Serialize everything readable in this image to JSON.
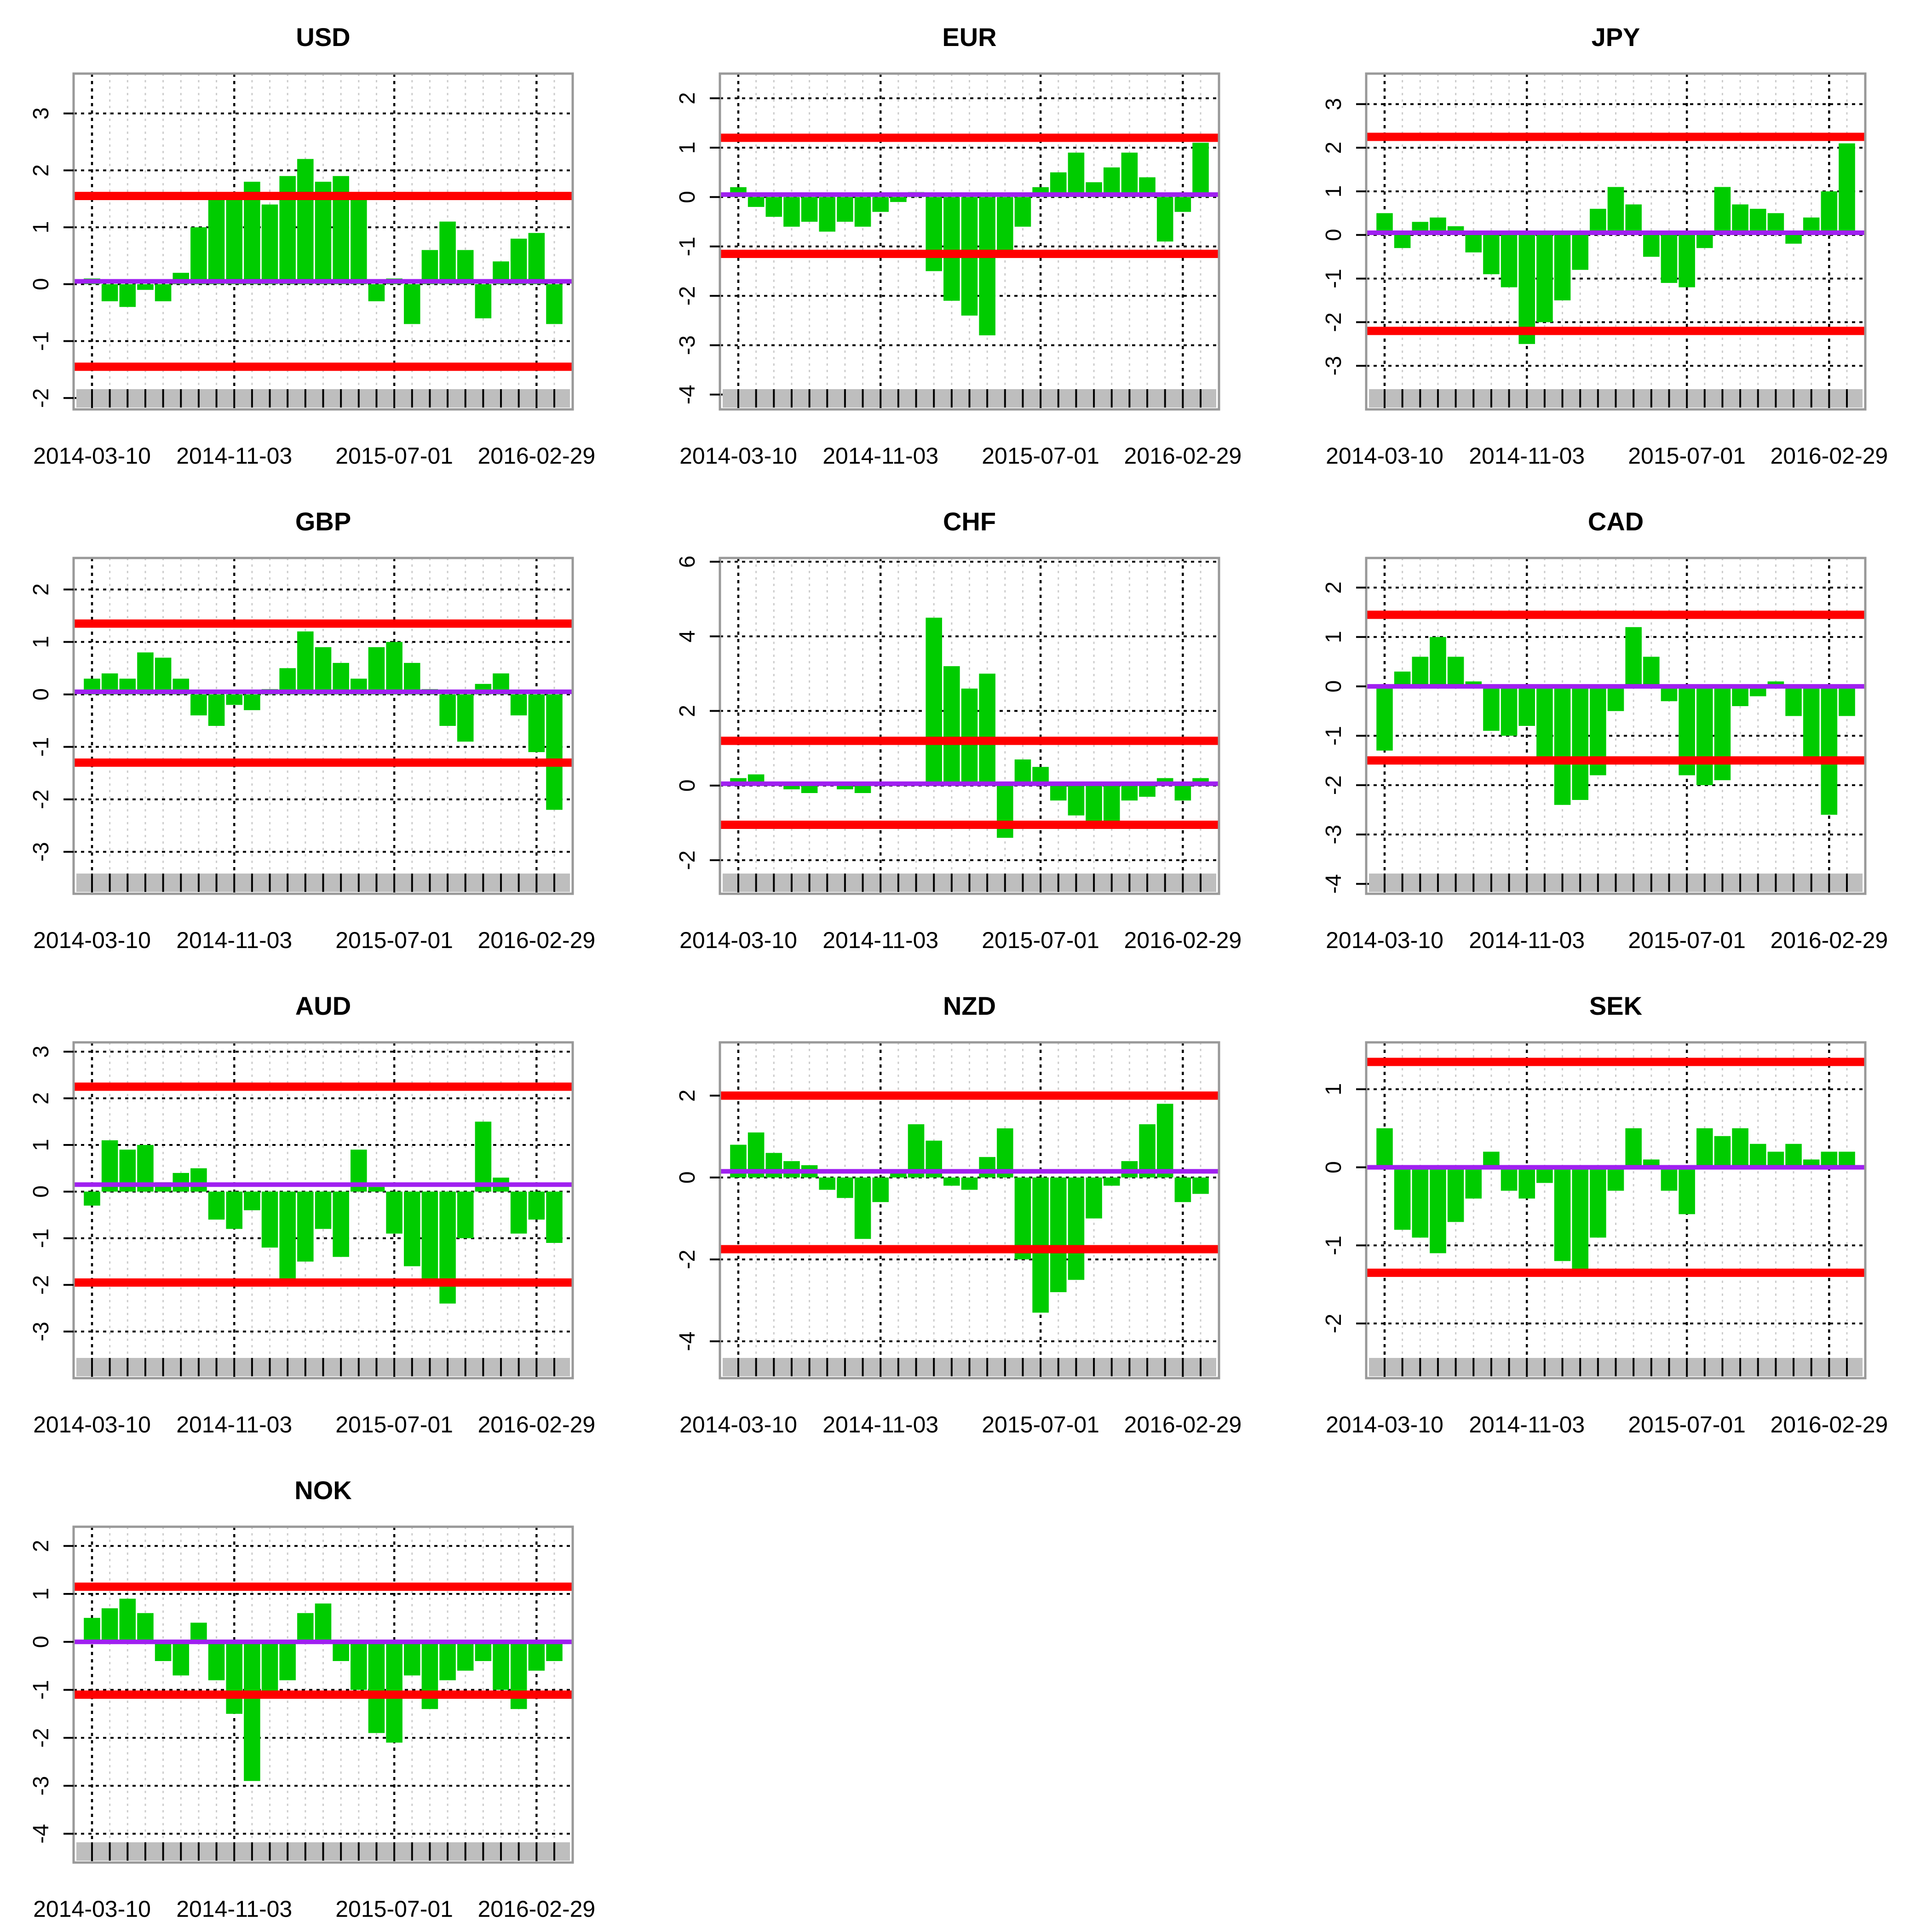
{
  "figure_title": "",
  "colors": {
    "bars": "#00cc00",
    "bands": "#ff0000",
    "mean": "#a020f0",
    "tick_strip": "#bebebe",
    "frame": "#999999",
    "major_grid": "#000000",
    "minor_grid": "#cccccc"
  },
  "chart_data": [
    {
      "type": "bar",
      "title": "USD",
      "x": [
        "2014-03-10",
        "2014-04-07",
        "2014-05-05",
        "2014-06-02",
        "2014-06-30",
        "2014-07-28",
        "2014-08-25",
        "2014-09-22",
        "2014-10-20",
        "2014-11-17",
        "2014-12-15",
        "2015-01-12",
        "2015-02-09",
        "2015-03-09",
        "2015-04-06",
        "2015-05-04",
        "2015-06-01",
        "2015-06-29",
        "2015-07-27",
        "2015-08-24",
        "2015-09-21",
        "2015-10-19",
        "2015-11-16",
        "2015-12-14",
        "2016-01-11",
        "2016-02-08",
        "2016-03-07"
      ],
      "values": [
        0.1,
        -0.3,
        -0.4,
        -0.1,
        -0.3,
        0.2,
        1.0,
        1.5,
        1.6,
        1.8,
        1.4,
        1.9,
        2.2,
        1.8,
        1.9,
        1.5,
        -0.3,
        0.1,
        -0.7,
        0.6,
        1.1,
        0.6,
        -0.6,
        0.4,
        0.8,
        0.9,
        -0.7
      ],
      "mean": 0.05,
      "upper": 1.55,
      "lower": -1.45,
      "xtick_labels": [
        "2014-03-10",
        "2014-11-03",
        "2015-07-01",
        "2016-02-29"
      ],
      "yticks": [
        -2,
        -1,
        0,
        1,
        2,
        3
      ],
      "ylim": [
        -2.2,
        3.7
      ]
    },
    {
      "type": "bar",
      "title": "EUR",
      "x": [
        "2014-03-10",
        "2014-04-07",
        "2014-05-05",
        "2014-06-02",
        "2014-06-30",
        "2014-07-28",
        "2014-08-25",
        "2014-09-22",
        "2014-10-20",
        "2014-11-17",
        "2014-12-15",
        "2015-01-12",
        "2015-02-09",
        "2015-03-09",
        "2015-04-06",
        "2015-05-04",
        "2015-06-01",
        "2015-06-29",
        "2015-07-27",
        "2015-08-24",
        "2015-09-21",
        "2015-10-19",
        "2015-11-16",
        "2015-12-14",
        "2016-01-11",
        "2016-02-08",
        "2016-03-07"
      ],
      "values": [
        0.2,
        -0.2,
        -0.4,
        -0.6,
        -0.5,
        -0.7,
        -0.5,
        -0.6,
        -0.3,
        -0.1,
        0.1,
        -1.5,
        -2.1,
        -2.4,
        -2.8,
        -1.2,
        -0.6,
        0.2,
        0.5,
        0.9,
        0.3,
        0.6,
        0.9,
        0.4,
        -0.9,
        -0.3,
        1.1
      ],
      "mean": 0.05,
      "upper": 1.2,
      "lower": -1.15,
      "xtick_labels": [
        "2014-03-10",
        "2014-11-03",
        "2015-07-01",
        "2016-02-29"
      ],
      "yticks": [
        -4,
        -3,
        -2,
        -1,
        0,
        1,
        2
      ],
      "ylim": [
        -4.3,
        2.5
      ]
    },
    {
      "type": "bar",
      "title": "JPY",
      "x": [
        "2014-03-10",
        "2014-04-07",
        "2014-05-05",
        "2014-06-02",
        "2014-06-30",
        "2014-07-28",
        "2014-08-25",
        "2014-09-22",
        "2014-10-20",
        "2014-11-17",
        "2014-12-15",
        "2015-01-12",
        "2015-02-09",
        "2015-03-09",
        "2015-04-06",
        "2015-05-04",
        "2015-06-01",
        "2015-06-29",
        "2015-07-27",
        "2015-08-24",
        "2015-09-21",
        "2015-10-19",
        "2015-11-16",
        "2015-12-14",
        "2016-01-11",
        "2016-02-08",
        "2016-03-07"
      ],
      "values": [
        0.5,
        -0.3,
        0.3,
        0.4,
        0.2,
        -0.4,
        -0.9,
        -1.2,
        -2.5,
        -2.0,
        -1.5,
        -0.8,
        0.6,
        1.1,
        0.7,
        -0.5,
        -1.1,
        -1.2,
        -0.3,
        1.1,
        0.7,
        0.6,
        0.5,
        -0.2,
        0.4,
        1.0,
        2.1
      ],
      "mean": 0.05,
      "upper": 2.25,
      "lower": -2.2,
      "xtick_labels": [
        "2014-03-10",
        "2014-11-03",
        "2015-07-01",
        "2016-02-29"
      ],
      "yticks": [
        -3,
        -2,
        -1,
        0,
        1,
        2,
        3
      ],
      "ylim": [
        -4.0,
        3.7
      ]
    },
    {
      "type": "bar",
      "title": "GBP",
      "x": [
        "2014-03-10",
        "2014-04-07",
        "2014-05-05",
        "2014-06-02",
        "2014-06-30",
        "2014-07-28",
        "2014-08-25",
        "2014-09-22",
        "2014-10-20",
        "2014-11-17",
        "2014-12-15",
        "2015-01-12",
        "2015-02-09",
        "2015-03-09",
        "2015-04-06",
        "2015-05-04",
        "2015-06-01",
        "2015-06-29",
        "2015-07-27",
        "2015-08-24",
        "2015-09-21",
        "2015-10-19",
        "2015-11-16",
        "2015-12-14",
        "2016-01-11",
        "2016-02-08",
        "2016-03-07"
      ],
      "values": [
        0.3,
        0.4,
        0.3,
        0.8,
        0.7,
        0.3,
        -0.4,
        -0.6,
        -0.2,
        -0.3,
        0.1,
        0.5,
        1.2,
        0.9,
        0.6,
        0.3,
        0.9,
        1.0,
        0.6,
        0.1,
        -0.6,
        -0.9,
        0.2,
        0.4,
        -0.4,
        -1.1,
        -2.2
      ],
      "mean": 0.05,
      "upper": 1.35,
      "lower": -1.3,
      "xtick_labels": [
        "2014-03-10",
        "2014-11-03",
        "2015-07-01",
        "2016-02-29"
      ],
      "yticks": [
        -3,
        -2,
        -1,
        0,
        1,
        2
      ],
      "ylim": [
        -3.8,
        2.6
      ]
    },
    {
      "type": "bar",
      "title": "CHF",
      "x": [
        "2014-03-10",
        "2014-04-07",
        "2014-05-05",
        "2014-06-02",
        "2014-06-30",
        "2014-07-28",
        "2014-08-25",
        "2014-09-22",
        "2014-10-20",
        "2014-11-17",
        "2014-12-15",
        "2015-01-12",
        "2015-02-09",
        "2015-03-09",
        "2015-04-06",
        "2015-05-04",
        "2015-06-01",
        "2015-06-29",
        "2015-07-27",
        "2015-08-24",
        "2015-09-21",
        "2015-10-19",
        "2015-11-16",
        "2015-12-14",
        "2016-01-11",
        "2016-02-08",
        "2016-03-07"
      ],
      "values": [
        0.2,
        0.3,
        0.1,
        -0.1,
        -0.2,
        0.1,
        -0.1,
        -0.2,
        0.1,
        0.1,
        0.1,
        4.5,
        3.2,
        2.6,
        3.0,
        -1.4,
        0.7,
        0.5,
        -0.4,
        -0.8,
        -1.1,
        -1.0,
        -0.4,
        -0.3,
        0.2,
        -0.4,
        0.2
      ],
      "mean": 0.05,
      "upper": 1.2,
      "lower": -1.05,
      "xtick_labels": [
        "2014-03-10",
        "2014-11-03",
        "2015-07-01",
        "2016-02-29"
      ],
      "yticks": [
        -2,
        0,
        2,
        4,
        6
      ],
      "ylim": [
        -2.9,
        6.1
      ]
    },
    {
      "type": "bar",
      "title": "CAD",
      "x": [
        "2014-03-10",
        "2014-04-07",
        "2014-05-05",
        "2014-06-02",
        "2014-06-30",
        "2014-07-28",
        "2014-08-25",
        "2014-09-22",
        "2014-10-20",
        "2014-11-17",
        "2014-12-15",
        "2015-01-12",
        "2015-02-09",
        "2015-03-09",
        "2015-04-06",
        "2015-05-04",
        "2015-06-01",
        "2015-06-29",
        "2015-07-27",
        "2015-08-24",
        "2015-09-21",
        "2015-10-19",
        "2015-11-16",
        "2015-12-14",
        "2016-01-11",
        "2016-02-08",
        "2016-03-07"
      ],
      "values": [
        -1.3,
        0.3,
        0.6,
        1.0,
        0.6,
        0.1,
        -0.9,
        -1.0,
        -0.8,
        -1.5,
        -2.4,
        -2.3,
        -1.8,
        -0.5,
        1.2,
        0.6,
        -0.3,
        -1.8,
        -2.0,
        -1.9,
        -0.4,
        -0.2,
        0.1,
        -0.6,
        -1.5,
        -2.6,
        -0.6
      ],
      "mean": 0.0,
      "upper": 1.45,
      "lower": -1.5,
      "xtick_labels": [
        "2014-03-10",
        "2014-11-03",
        "2015-07-01",
        "2016-02-29"
      ],
      "yticks": [
        -4,
        -3,
        -2,
        -1,
        0,
        1,
        2
      ],
      "ylim": [
        -4.2,
        2.6
      ]
    },
    {
      "type": "bar",
      "title": "AUD",
      "x": [
        "2014-03-10",
        "2014-04-07",
        "2014-05-05",
        "2014-06-02",
        "2014-06-30",
        "2014-07-28",
        "2014-08-25",
        "2014-09-22",
        "2014-10-20",
        "2014-11-17",
        "2014-12-15",
        "2015-01-12",
        "2015-02-09",
        "2015-03-09",
        "2015-04-06",
        "2015-05-04",
        "2015-06-01",
        "2015-06-29",
        "2015-07-27",
        "2015-08-24",
        "2015-09-21",
        "2015-10-19",
        "2015-11-16",
        "2015-12-14",
        "2016-01-11",
        "2016-02-08",
        "2016-03-07"
      ],
      "values": [
        -0.3,
        1.1,
        0.9,
        1.0,
        0.2,
        0.4,
        0.5,
        -0.6,
        -0.8,
        -0.4,
        -1.2,
        -2.0,
        -1.5,
        -0.8,
        -1.4,
        0.9,
        0.1,
        -0.9,
        -1.6,
        -2.0,
        -2.4,
        -1.0,
        1.5,
        0.3,
        -0.9,
        -0.6,
        -1.1
      ],
      "mean": 0.15,
      "upper": 2.25,
      "lower": -1.95,
      "xtick_labels": [
        "2014-03-10",
        "2014-11-03",
        "2015-07-01",
        "2016-02-29"
      ],
      "yticks": [
        -3,
        -2,
        -1,
        0,
        1,
        2,
        3
      ],
      "ylim": [
        -4.0,
        3.2
      ]
    },
    {
      "type": "bar",
      "title": "NZD",
      "x": [
        "2014-03-10",
        "2014-04-07",
        "2014-05-05",
        "2014-06-02",
        "2014-06-30",
        "2014-07-28",
        "2014-08-25",
        "2014-09-22",
        "2014-10-20",
        "2014-11-17",
        "2014-12-15",
        "2015-01-12",
        "2015-02-09",
        "2015-03-09",
        "2015-04-06",
        "2015-05-04",
        "2015-06-01",
        "2015-06-29",
        "2015-07-27",
        "2015-08-24",
        "2015-09-21",
        "2015-10-19",
        "2015-11-16",
        "2015-12-14",
        "2016-01-11",
        "2016-02-08",
        "2016-03-07"
      ],
      "values": [
        0.8,
        1.1,
        0.6,
        0.4,
        0.3,
        -0.3,
        -0.5,
        -1.5,
        -0.6,
        0.1,
        1.3,
        0.9,
        -0.2,
        -0.3,
        0.5,
        1.2,
        -2.0,
        -3.3,
        -2.8,
        -2.5,
        -1.0,
        -0.2,
        0.4,
        1.3,
        1.8,
        -0.6,
        -0.4
      ],
      "mean": 0.15,
      "upper": 2.0,
      "lower": -1.75,
      "xtick_labels": [
        "2014-03-10",
        "2014-11-03",
        "2015-07-01",
        "2016-02-29"
      ],
      "yticks": [
        -4,
        -2,
        0,
        2
      ],
      "ylim": [
        -4.9,
        3.3
      ]
    },
    {
      "type": "bar",
      "title": "SEK",
      "x": [
        "2014-03-10",
        "2014-04-07",
        "2014-05-05",
        "2014-06-02",
        "2014-06-30",
        "2014-07-28",
        "2014-08-25",
        "2014-09-22",
        "2014-10-20",
        "2014-11-17",
        "2014-12-15",
        "2015-01-12",
        "2015-02-09",
        "2015-03-09",
        "2015-04-06",
        "2015-05-04",
        "2015-06-01",
        "2015-06-29",
        "2015-07-27",
        "2015-08-24",
        "2015-09-21",
        "2015-10-19",
        "2015-11-16",
        "2015-12-14",
        "2016-01-11",
        "2016-02-08",
        "2016-03-07"
      ],
      "values": [
        0.5,
        -0.8,
        -0.9,
        -1.1,
        -0.7,
        -0.4,
        0.2,
        -0.3,
        -0.4,
        -0.2,
        -1.2,
        -1.4,
        -0.9,
        -0.3,
        0.5,
        0.1,
        -0.3,
        -0.6,
        0.5,
        0.4,
        0.5,
        0.3,
        0.2,
        0.3,
        0.1,
        0.2,
        0.2
      ],
      "mean": 0.0,
      "upper": 1.35,
      "lower": -1.35,
      "xtick_labels": [
        "2014-03-10",
        "2014-11-03",
        "2015-07-01",
        "2016-02-29"
      ],
      "yticks": [
        -2,
        -1,
        0,
        1
      ],
      "ylim": [
        -2.7,
        1.6
      ]
    },
    {
      "type": "bar",
      "title": "NOK",
      "x": [
        "2014-03-10",
        "2014-04-07",
        "2014-05-05",
        "2014-06-02",
        "2014-06-30",
        "2014-07-28",
        "2014-08-25",
        "2014-09-22",
        "2014-10-20",
        "2014-11-17",
        "2014-12-15",
        "2015-01-12",
        "2015-02-09",
        "2015-03-09",
        "2015-04-06",
        "2015-05-04",
        "2015-06-01",
        "2015-06-29",
        "2015-07-27",
        "2015-08-24",
        "2015-09-21",
        "2015-10-19",
        "2015-11-16",
        "2015-12-14",
        "2016-01-11",
        "2016-02-08",
        "2016-03-07"
      ],
      "values": [
        0.5,
        0.7,
        0.9,
        0.6,
        -0.4,
        -0.7,
        0.4,
        -0.8,
        -1.5,
        -2.9,
        -1.1,
        -0.8,
        0.6,
        0.8,
        -0.4,
        -1.0,
        -1.9,
        -2.1,
        -0.7,
        -1.4,
        -0.8,
        -0.6,
        -0.4,
        -1.0,
        -1.4,
        -0.6,
        -0.4
      ],
      "mean": 0.0,
      "upper": 1.15,
      "lower": -1.1,
      "xtick_labels": [
        "2014-03-10",
        "2014-11-03",
        "2015-07-01",
        "2016-02-29"
      ],
      "yticks": [
        -4,
        -3,
        -2,
        -1,
        0,
        1,
        2
      ],
      "ylim": [
        -4.6,
        2.4
      ]
    }
  ]
}
